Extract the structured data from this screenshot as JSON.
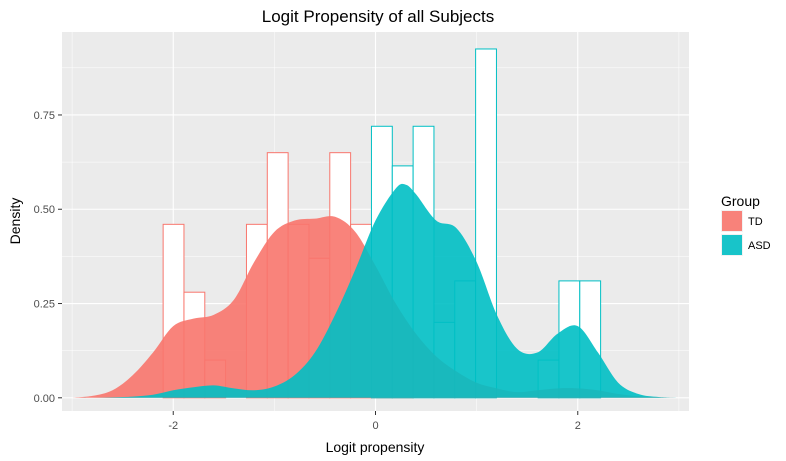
{
  "chart_data": {
    "type": "histogram-density",
    "title": "Logit Propensity of all Subjects",
    "xlabel": "Logit propensity",
    "ylabel": "Density",
    "xlim": [
      -3.1,
      3.1
    ],
    "ylim": [
      -0.035,
      0.97
    ],
    "x_ticks": [
      -2,
      0,
      2
    ],
    "x_tick_labels": [
      "-2",
      "0",
      "2"
    ],
    "y_ticks": [
      0,
      0.25,
      0.5,
      0.75
    ],
    "y_tick_labels": [
      "0.00",
      "0.25",
      "0.50",
      "0.75"
    ],
    "grid": true,
    "legend": {
      "title": "Group",
      "position": "right"
    },
    "series": [
      {
        "name": "TD",
        "color": "#F8766D",
        "histogram": {
          "bin_width": 0.206,
          "bins": [
            {
              "x0": -2.1,
              "y": 0.46
            },
            {
              "x0": -1.894,
              "y": 0.28
            },
            {
              "x0": -1.688,
              "y": 0.1
            },
            {
              "x0": -1.276,
              "y": 0.46
            },
            {
              "x0": -1.07,
              "y": 0.65
            },
            {
              "x0": -0.864,
              "y": 0.46
            },
            {
              "x0": -0.658,
              "y": 0.37
            },
            {
              "x0": -0.452,
              "y": 0.65
            },
            {
              "x0": -0.246,
              "y": 0.46
            },
            {
              "x0": -0.04,
              "y": 0.2
            },
            {
              "x0": 0.166,
              "y": 0.1
            }
          ]
        },
        "density": {
          "x": [
            -3.0,
            -2.8,
            -2.6,
            -2.4,
            -2.2,
            -2.0,
            -1.8,
            -1.6,
            -1.4,
            -1.2,
            -1.0,
            -0.8,
            -0.6,
            -0.4,
            -0.2,
            0.0,
            0.2,
            0.4,
            0.6,
            0.8,
            1.0,
            1.2,
            1.4,
            1.6,
            1.8,
            2.0,
            2.2,
            2.4,
            2.6,
            2.8,
            3.0
          ],
          "y": [
            0.0,
            0.005,
            0.02,
            0.06,
            0.12,
            0.19,
            0.21,
            0.22,
            0.26,
            0.36,
            0.44,
            0.47,
            0.475,
            0.48,
            0.44,
            0.35,
            0.25,
            0.17,
            0.11,
            0.07,
            0.04,
            0.025,
            0.015,
            0.02,
            0.025,
            0.025,
            0.02,
            0.01,
            0.004,
            0.001,
            0.0
          ]
        }
      },
      {
        "name": "ASD",
        "color": "#00BFC4",
        "histogram": {
          "bin_width": 0.206,
          "bins": [
            {
              "x0": -0.04,
              "y": 0.72
            },
            {
              "x0": 0.166,
              "y": 0.615
            },
            {
              "x0": 0.372,
              "y": 0.72
            },
            {
              "x0": 0.578,
              "y": 0.2
            },
            {
              "x0": 0.784,
              "y": 0.31
            },
            {
              "x0": 0.99,
              "y": 0.925
            },
            {
              "x0": 1.608,
              "y": 0.1
            },
            {
              "x0": 1.814,
              "y": 0.31
            },
            {
              "x0": 2.02,
              "y": 0.31
            }
          ]
        },
        "density": {
          "x": [
            -3.0,
            -2.8,
            -2.6,
            -2.4,
            -2.2,
            -2.0,
            -1.8,
            -1.6,
            -1.4,
            -1.2,
            -1.0,
            -0.8,
            -0.6,
            -0.4,
            -0.2,
            0.0,
            0.2,
            0.3,
            0.4,
            0.6,
            0.8,
            1.0,
            1.2,
            1.4,
            1.6,
            1.8,
            2.0,
            2.2,
            2.4,
            2.6,
            2.8,
            3.0
          ],
          "y": [
            0.0,
            0.0,
            0.001,
            0.003,
            0.008,
            0.02,
            0.028,
            0.033,
            0.025,
            0.02,
            0.03,
            0.06,
            0.12,
            0.22,
            0.34,
            0.47,
            0.555,
            0.565,
            0.54,
            0.47,
            0.45,
            0.36,
            0.22,
            0.13,
            0.12,
            0.17,
            0.19,
            0.12,
            0.04,
            0.01,
            0.002,
            0.0
          ]
        }
      }
    ]
  }
}
